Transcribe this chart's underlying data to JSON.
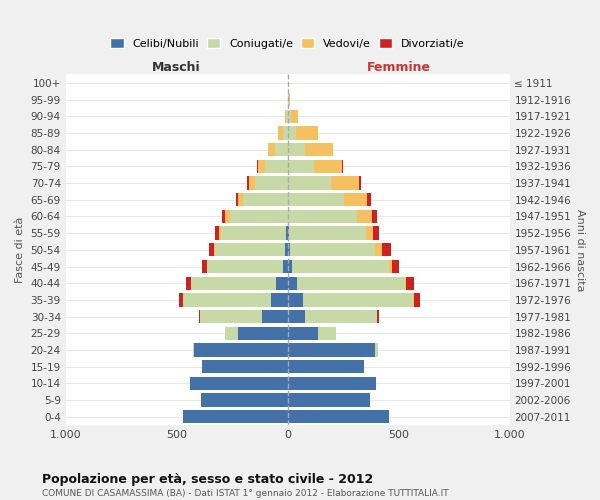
{
  "age_groups": [
    "0-4",
    "5-9",
    "10-14",
    "15-19",
    "20-24",
    "25-29",
    "30-34",
    "35-39",
    "40-44",
    "45-49",
    "50-54",
    "55-59",
    "60-64",
    "65-69",
    "70-74",
    "75-79",
    "80-84",
    "85-89",
    "90-94",
    "95-99",
    "100+"
  ],
  "birth_years": [
    "2007-2011",
    "2002-2006",
    "1997-2001",
    "1992-1996",
    "1987-1991",
    "1982-1986",
    "1977-1981",
    "1972-1976",
    "1967-1971",
    "1962-1966",
    "1957-1961",
    "1952-1956",
    "1947-1951",
    "1942-1946",
    "1937-1941",
    "1932-1936",
    "1927-1931",
    "1922-1926",
    "1917-1921",
    "1912-1916",
    "≤ 1911"
  ],
  "males_celibe": [
    470,
    390,
    440,
    385,
    420,
    225,
    115,
    75,
    50,
    20,
    10,
    5,
    0,
    0,
    0,
    0,
    0,
    0,
    0,
    0,
    0
  ],
  "males_coniugato": [
    0,
    0,
    0,
    0,
    8,
    55,
    280,
    395,
    385,
    345,
    315,
    295,
    260,
    200,
    145,
    100,
    55,
    20,
    5,
    0,
    0
  ],
  "males_vedovo": [
    0,
    0,
    0,
    0,
    0,
    0,
    0,
    0,
    0,
    0,
    6,
    8,
    20,
    22,
    30,
    35,
    35,
    25,
    5,
    0,
    0
  ],
  "males_divorziato": [
    0,
    0,
    0,
    0,
    0,
    0,
    5,
    18,
    22,
    22,
    25,
    20,
    15,
    10,
    10,
    5,
    0,
    0,
    0,
    0,
    0
  ],
  "females_nubile": [
    455,
    370,
    400,
    345,
    395,
    135,
    80,
    68,
    42,
    20,
    10,
    5,
    0,
    0,
    0,
    0,
    0,
    0,
    0,
    0,
    0
  ],
  "females_coniugata": [
    0,
    0,
    0,
    0,
    12,
    85,
    325,
    495,
    485,
    435,
    385,
    350,
    315,
    255,
    195,
    120,
    80,
    40,
    15,
    5,
    0
  ],
  "females_vedova": [
    0,
    0,
    0,
    0,
    0,
    0,
    0,
    5,
    5,
    15,
    32,
    32,
    65,
    105,
    125,
    125,
    125,
    95,
    30,
    5,
    0
  ],
  "females_divorziata": [
    0,
    0,
    0,
    0,
    0,
    0,
    5,
    27,
    38,
    32,
    38,
    27,
    22,
    15,
    10,
    5,
    0,
    0,
    0,
    0,
    0
  ],
  "colors_celibe": "#4472a8",
  "colors_coniugato": "#c8d9a8",
  "colors_vedovo": "#f5c060",
  "colors_divorziato": "#cc2222",
  "legend_labels": [
    "Celibi/Nubili",
    "Coniugati/e",
    "Vedovi/e",
    "Divorziati/e"
  ],
  "legend_colors": [
    "#4472a8",
    "#c8d9a8",
    "#f5c060",
    "#cc2222"
  ],
  "title_main": "Popolazione per età, sesso e stato civile - 2012",
  "title_sub": "COMUNE DI CASAMASSIMA (BA) - Dati ISTAT 1° gennaio 2012 - Elaborazione TUTTITALIA.IT",
  "label_maschi": "Maschi",
  "label_femmine": "Femmine",
  "ylabel_left": "Fasce di età",
  "ylabel_right": "Anni di nascita",
  "xlim": 1000,
  "bg_color": "#f0f0f0",
  "plot_bg": "#ffffff"
}
